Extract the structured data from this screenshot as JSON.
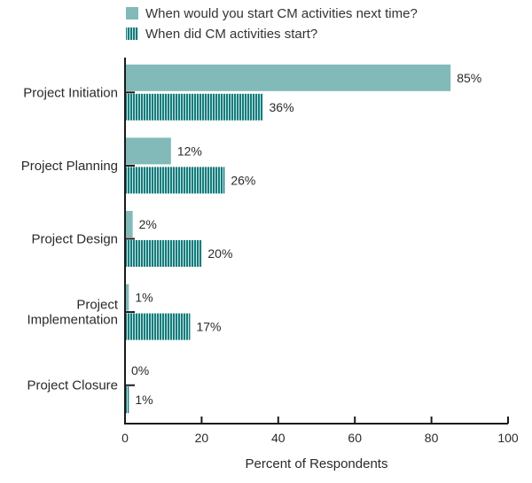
{
  "colors": {
    "series1": "#82b9b9",
    "series2": "#137c7c",
    "stripe": "#e8f4f4",
    "axis": "#1a1a1a"
  },
  "chart_data": {
    "type": "bar",
    "orientation": "horizontal",
    "title": "",
    "xlabel": "Percent of Respondents",
    "ylabel": "",
    "xlim": [
      0,
      100
    ],
    "xticks": [
      0,
      20,
      40,
      60,
      80,
      100
    ],
    "legend_position": "top",
    "categories": [
      [
        "Project Initiation"
      ],
      [
        "Project Planning"
      ],
      [
        "Project Design"
      ],
      [
        "Project",
        "Implementation"
      ],
      [
        "Project Closure"
      ]
    ],
    "series": [
      {
        "name": "When would you start CM activities next time?",
        "values": [
          85,
          12,
          2,
          1,
          0
        ],
        "labels": [
          "85%",
          "12%",
          "2%",
          "1%",
          "0%"
        ]
      },
      {
        "name": "When did CM activities start?",
        "values": [
          36,
          26,
          20,
          17,
          1
        ],
        "labels": [
          "36%",
          "26%",
          "20%",
          "17%",
          "1%"
        ]
      }
    ]
  }
}
